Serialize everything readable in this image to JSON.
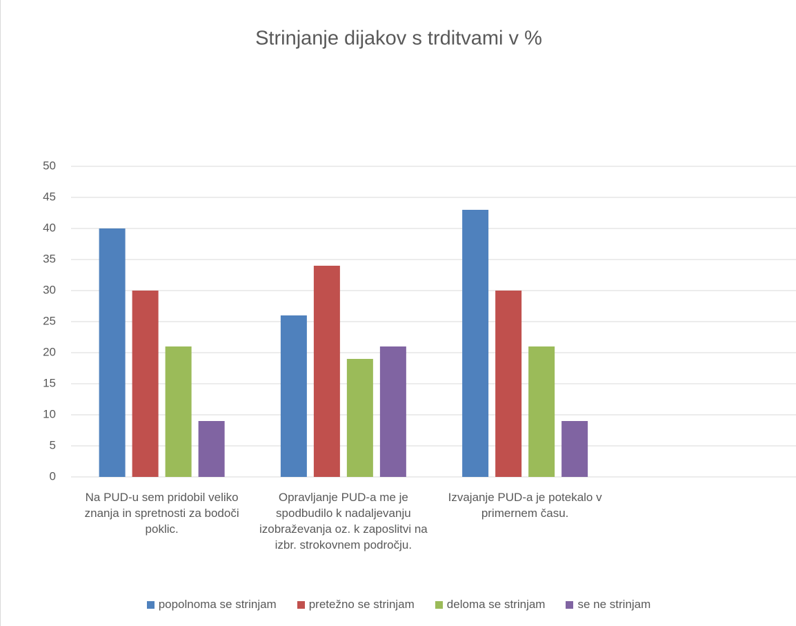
{
  "chart_data": {
    "type": "bar",
    "title": "Strinjanje dijakov s trditvami v %",
    "categories": [
      "Na PUD-u sem pridobil veliko znanja in spretnosti za bodoči poklic.",
      "Opravljanje PUD-a me je spodbudilo k nadaljevanju izobraževanja oz. k zaposlitvi na izbr. strokovnem področju.",
      "Izvajanje PUD-a je potekalo v primernem času.",
      null
    ],
    "series": [
      {
        "name": "popolnoma se strinjam",
        "color": "#4f81bd",
        "values": [
          40,
          26,
          43,
          null
        ]
      },
      {
        "name": "pretežno se strinjam",
        "color": "#c0504d",
        "values": [
          30,
          34,
          30,
          null
        ]
      },
      {
        "name": "deloma se strinjam",
        "color": "#9bbb59",
        "values": [
          21,
          19,
          21,
          null
        ]
      },
      {
        "name": "se ne strinjam",
        "color": "#8064a2",
        "values": [
          9,
          21,
          9,
          null
        ]
      }
    ],
    "ylim": [
      0,
      50
    ],
    "yticks": [
      0,
      5,
      10,
      15,
      20,
      25,
      30,
      35,
      40,
      45,
      50
    ],
    "grid": true,
    "legend": "bottom"
  }
}
